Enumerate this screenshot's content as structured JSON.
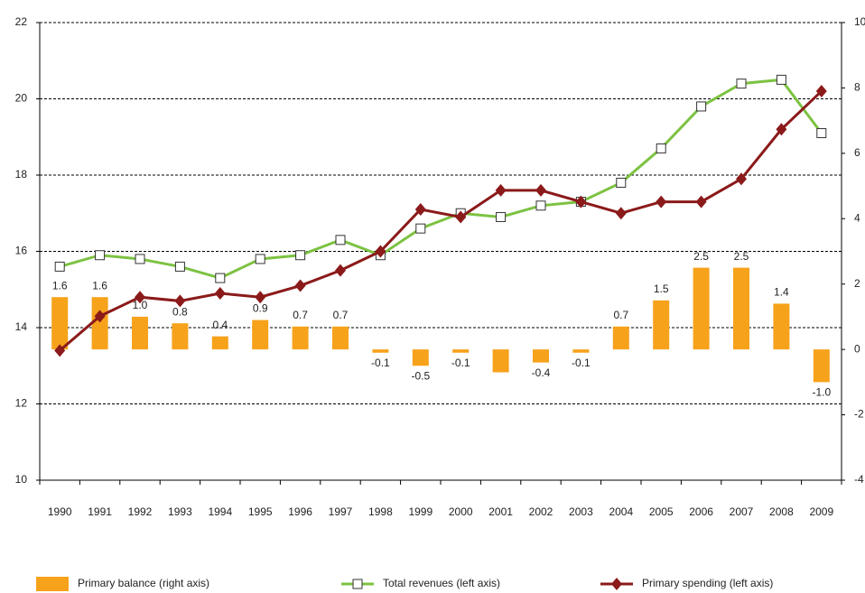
{
  "chart_data": {
    "type": "bar-line",
    "categories": [
      "1990",
      "1991",
      "1992",
      "1993",
      "1994",
      "1995",
      "1996",
      "1997",
      "1998",
      "1999",
      "2000",
      "2001",
      "2002",
      "2003",
      "2004",
      "2005",
      "2006",
      "2007",
      "2008",
      "2009"
    ],
    "series": [
      {
        "name": "Primary balance (right axis)",
        "type": "bar",
        "axis": "y2",
        "color": "#f7a21b",
        "values": [
          1.6,
          1.6,
          1.0,
          0.8,
          0.4,
          0.9,
          0.7,
          0.7,
          -0.1,
          -0.5,
          -0.1,
          -0.7,
          -0.4,
          -0.1,
          0.7,
          1.5,
          2.5,
          2.5,
          1.4,
          -1.0
        ],
        "value_labels": [
          "1.6",
          "1.6",
          "1.0",
          "0.8",
          "0.4",
          "0.9",
          "0.7",
          "0.7",
          "-0.1",
          "-0.5",
          "-0.1",
          null,
          "-0.4",
          "-0.1",
          "0.7",
          "1.5",
          "2.5",
          "2.5",
          "1.4",
          "-1.0"
        ]
      },
      {
        "name": "Total revenues (left axis)",
        "type": "line",
        "marker": "square",
        "color": "#7dc242",
        "values": [
          15.6,
          15.9,
          15.8,
          15.6,
          15.3,
          15.8,
          15.9,
          16.3,
          15.9,
          16.6,
          17.0,
          16.9,
          17.2,
          17.3,
          17.8,
          18.7,
          19.8,
          20.4,
          20.5,
          19.1
        ]
      },
      {
        "name": "Primary spending (left axis)",
        "type": "line",
        "marker": "diamond",
        "color": "#8b1a1a",
        "values": [
          13.4,
          14.3,
          14.8,
          14.7,
          14.9,
          14.8,
          15.1,
          15.5,
          16.0,
          17.1,
          16.9,
          17.6,
          17.6,
          17.3,
          17.0,
          17.3,
          17.3,
          17.9,
          19.2,
          20.2
        ]
      }
    ],
    "ylim": [
      10,
      22
    ],
    "yticks": [
      10,
      12,
      14,
      16,
      18,
      20,
      22
    ],
    "y2lim": [
      -4,
      10
    ],
    "y2ticks": [
      -4,
      -2,
      0,
      2,
      4,
      6,
      8,
      10
    ],
    "grid": true
  }
}
